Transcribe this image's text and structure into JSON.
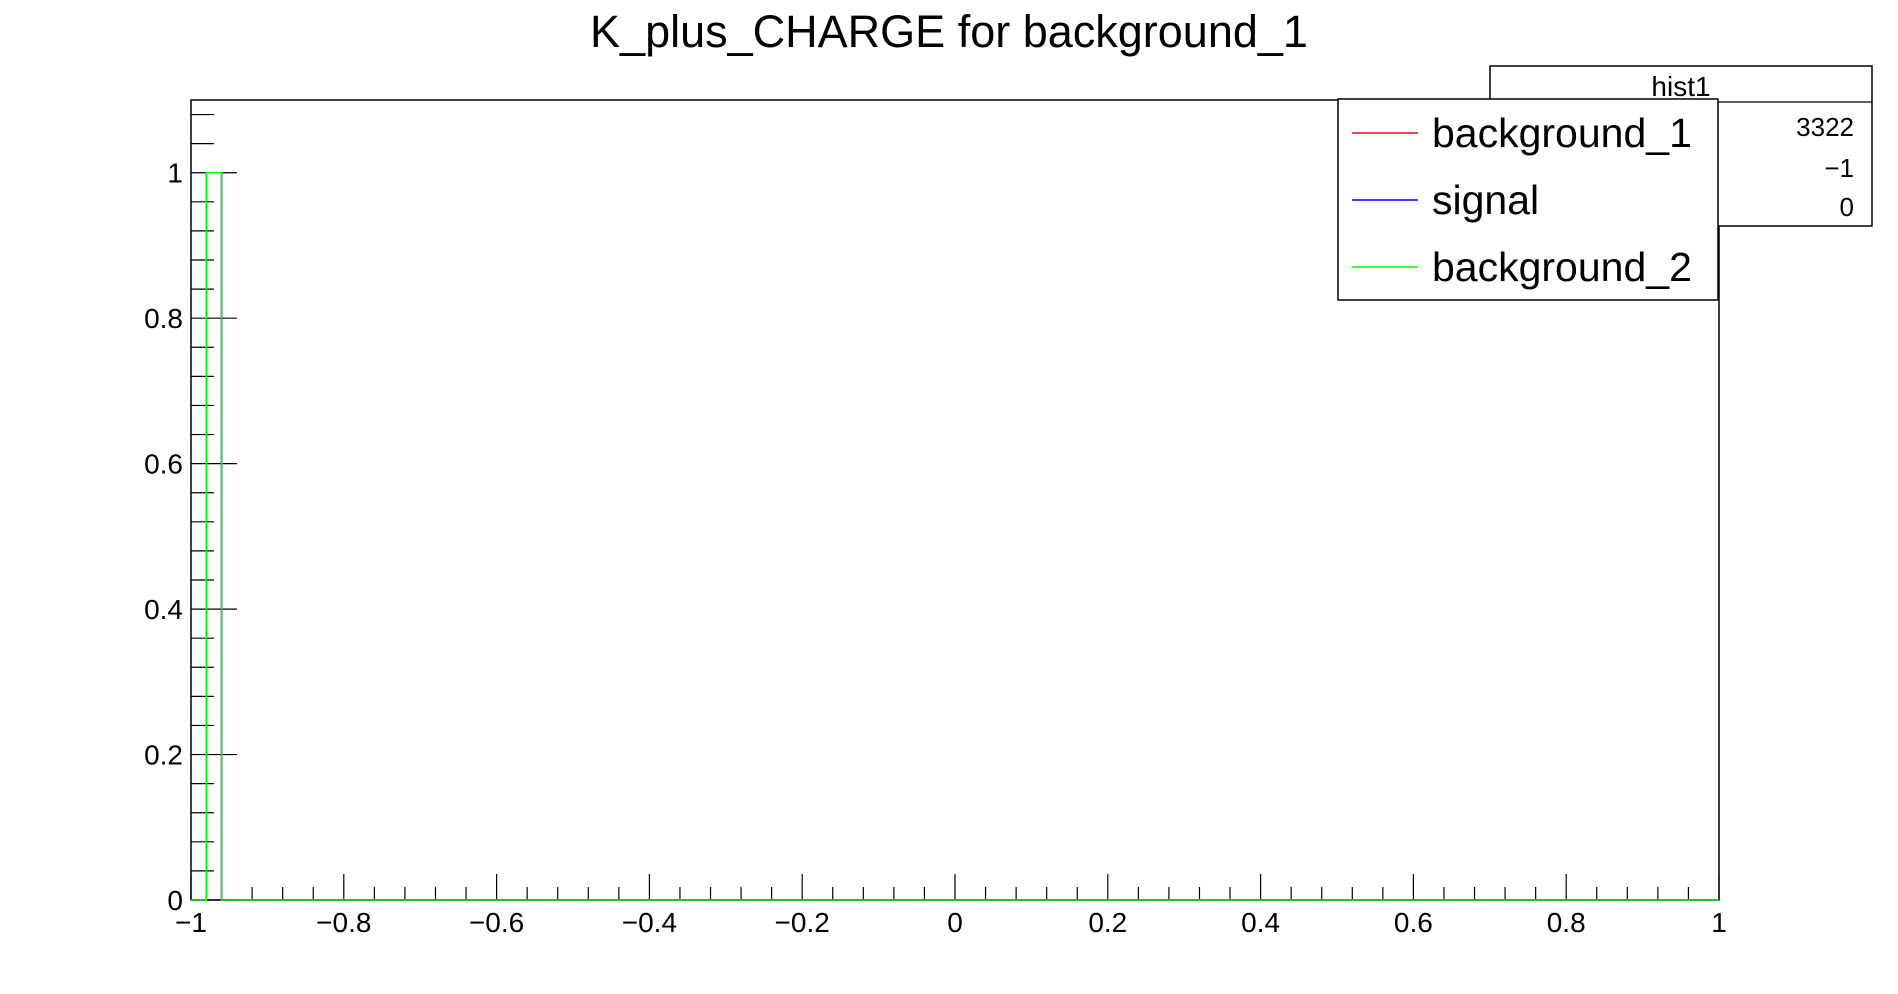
{
  "chart_data": {
    "type": "histogram",
    "title": "K_plus_CHARGE for background_1",
    "xlabel": "",
    "ylabel": "",
    "xlim": [
      -1,
      1
    ],
    "ylim": [
      0,
      1.1
    ],
    "x_ticks": [
      -1,
      -0.8,
      -0.6,
      -0.4,
      -0.2,
      0,
      0.2,
      0.4,
      0.6,
      0.8,
      1
    ],
    "x_tick_labels": [
      "−1",
      "−0.8",
      "−0.6",
      "−0.4",
      "−0.2",
      "0",
      "0.2",
      "0.4",
      "0.6",
      "0.8",
      "1"
    ],
    "y_ticks": [
      0,
      0.2,
      0.4,
      0.6,
      0.8,
      1
    ],
    "y_tick_labels": [
      "0",
      "0.2",
      "0.4",
      "0.6",
      "0.8",
      "1"
    ],
    "bins": 100,
    "series": [
      {
        "name": "background_1",
        "color": "#ff0000",
        "x": [
          -0.98
        ],
        "y": [
          1
        ]
      },
      {
        "name": "signal",
        "color": "#0000ff",
        "x": [
          -0.98
        ],
        "y": [
          1
        ]
      },
      {
        "name": "background_2",
        "color": "#00ff00",
        "x": [
          -0.98
        ],
        "y": [
          1
        ]
      }
    ],
    "legend_position": "top-right",
    "stats_box": {
      "title": "hist1",
      "values": [
        "3322",
        "−1",
        "0"
      ]
    },
    "grid": false
  }
}
